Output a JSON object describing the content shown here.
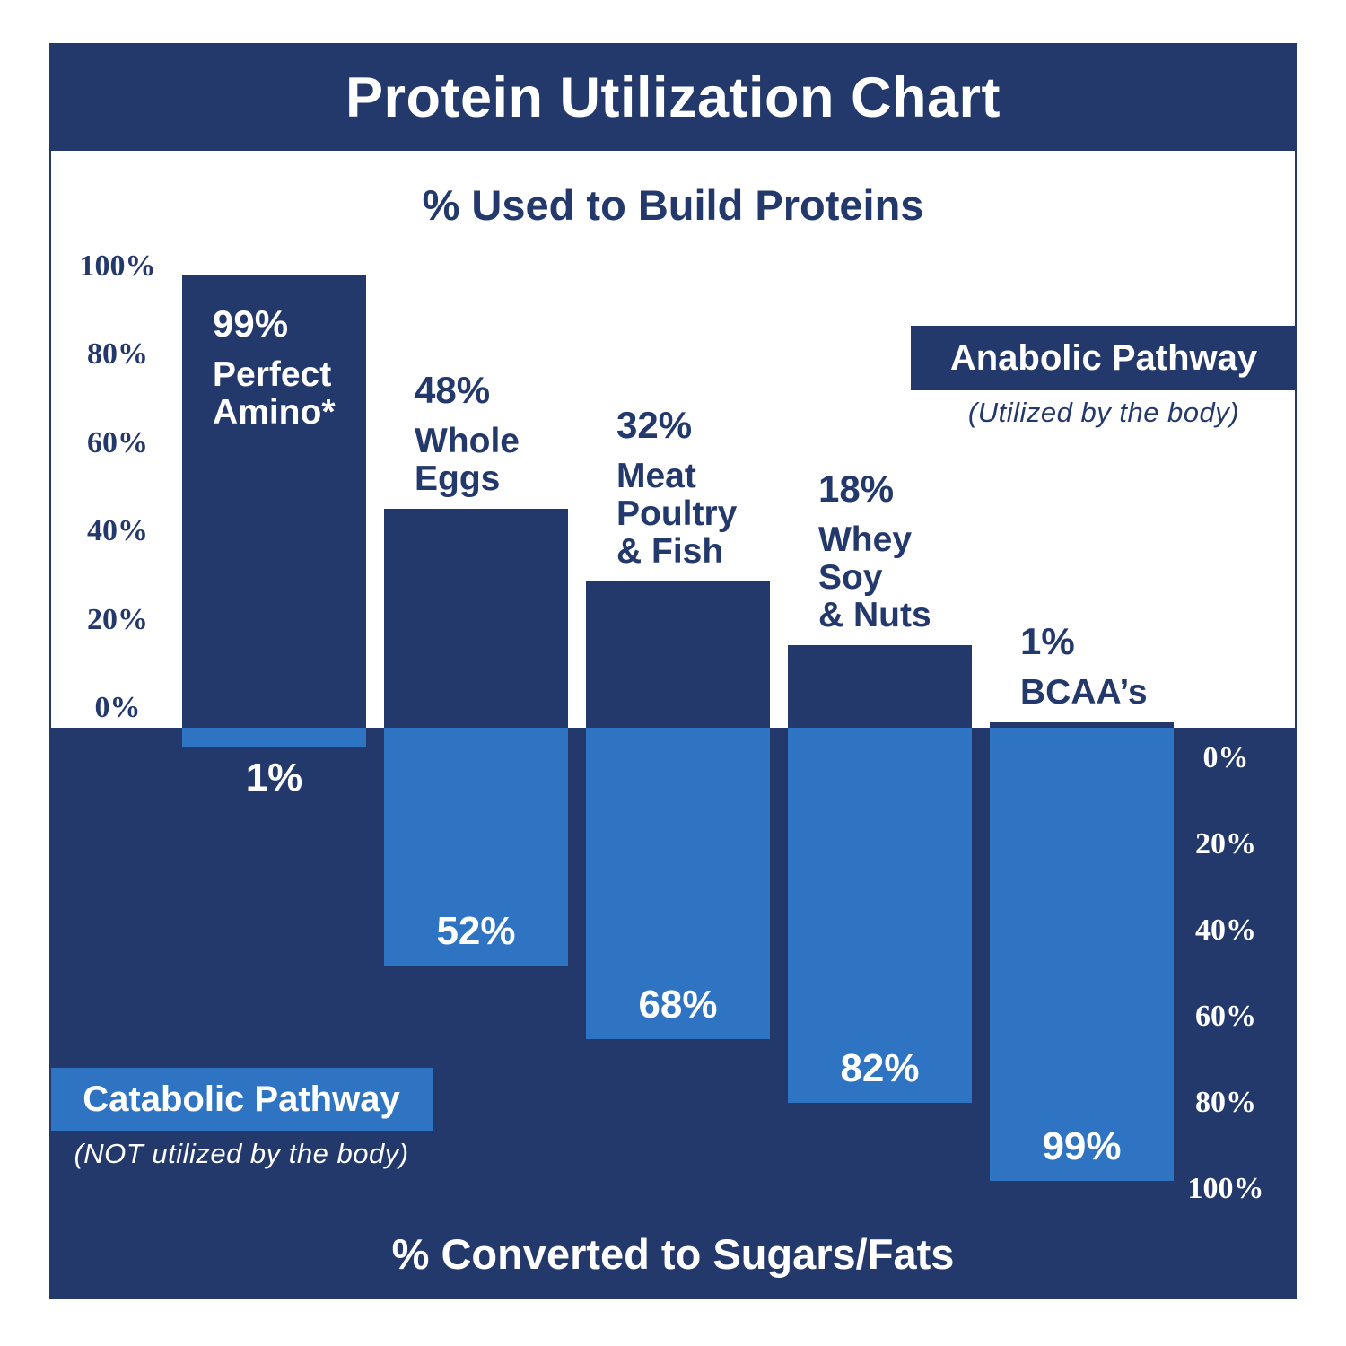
{
  "title": "Protein Utilization Chart",
  "axes": {
    "top_title": "% Used to Build Proteins",
    "bottom_title": "% Converted to Sugars/Fats",
    "left_ticks": [
      "100%",
      "80%",
      "60%",
      "40%",
      "20%",
      "0%"
    ],
    "right_ticks": [
      "0%",
      "20%",
      "40%",
      "60%",
      "80%",
      "100%"
    ]
  },
  "legend": {
    "anabolic_label": "Anabolic Pathway",
    "anabolic_sublabel": "(Utilized by the body)",
    "catabolic_label": "Catabolic Pathway",
    "catabolic_sublabel": "(NOT utilized by the body)"
  },
  "colors": {
    "navy": "#24396B",
    "light_blue": "#2E74C2",
    "background": "#FFFFFF"
  },
  "chart_data": {
    "type": "bar",
    "subtype": "diverging-vertical",
    "title": "Protein Utilization Chart",
    "categories": [
      "Perfect Amino*",
      "Whole Eggs",
      "Meat Poultry & Fish",
      "Whey Soy & Nuts",
      "BCAA’s"
    ],
    "series": [
      {
        "name": "Anabolic Pathway — % Used to Build Proteins (Utilized by the body)",
        "direction": "up",
        "color": "#24396B",
        "values": [
          99,
          48,
          32,
          18,
          1
        ]
      },
      {
        "name": "Catabolic Pathway — % Converted to Sugars/Fats (NOT utilized by the body)",
        "direction": "down",
        "color": "#2E74C2",
        "values": [
          1,
          52,
          68,
          82,
          99
        ]
      }
    ],
    "ylim_top": [
      0,
      100
    ],
    "ylim_bottom": [
      0,
      100
    ],
    "grid": false,
    "legend_position": "anabolic: top-right of upper plot; catabolic: bottom-left of lower plot"
  },
  "bars": [
    {
      "pct_label": "99%",
      "name_lines": [
        "Perfect",
        "Amino*"
      ],
      "anabolic_value": 99,
      "catabolic_value": 1,
      "catabolic_label": "1%",
      "label_inside_bar": true,
      "catabolic_label_outside": true
    },
    {
      "pct_label": "48%",
      "name_lines": [
        "Whole",
        "Eggs"
      ],
      "anabolic_value": 48,
      "catabolic_value": 52,
      "catabolic_label": "52%",
      "label_inside_bar": false,
      "catabolic_label_outside": false
    },
    {
      "pct_label": "32%",
      "name_lines": [
        "Meat",
        "Poultry",
        "& Fish"
      ],
      "anabolic_value": 32,
      "catabolic_value": 68,
      "catabolic_label": "68%",
      "label_inside_bar": false,
      "catabolic_label_outside": false
    },
    {
      "pct_label": "18%",
      "name_lines": [
        "Whey",
        "Soy",
        "& Nuts"
      ],
      "anabolic_value": 18,
      "catabolic_value": 82,
      "catabolic_label": "82%",
      "label_inside_bar": false,
      "catabolic_label_outside": false
    },
    {
      "pct_label": "1%",
      "name_lines": [
        "BCAA’s"
      ],
      "anabolic_value": 1,
      "catabolic_value": 99,
      "catabolic_label": "99%",
      "label_inside_bar": false,
      "catabolic_label_outside": false
    }
  ]
}
